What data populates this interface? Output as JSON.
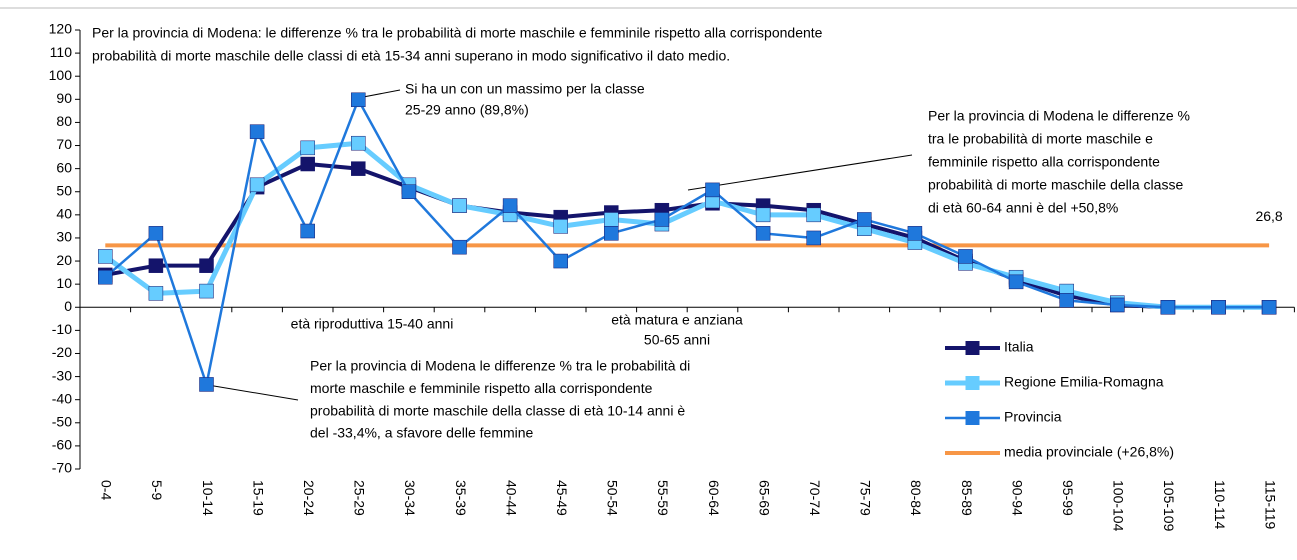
{
  "chart_data": {
    "type": "line",
    "categories": [
      "0-4",
      "5-9",
      "10-14",
      "15-19",
      "20-24",
      "25-29",
      "30-34",
      "35-39",
      "40-44",
      "45-49",
      "50-54",
      "55-59",
      "60-64",
      "65-69",
      "70-74",
      "75-79",
      "80-84",
      "85-89",
      "90-94",
      "95-99",
      "100-104",
      "105-109",
      "110-114",
      "115-119"
    ],
    "ylim": [
      -70,
      120
    ],
    "yticks": [
      -70,
      -60,
      -50,
      -40,
      -30,
      -20,
      -10,
      0,
      10,
      20,
      30,
      40,
      50,
      60,
      70,
      80,
      90,
      100,
      110,
      120
    ],
    "series": [
      {
        "name": "Italia",
        "color": "#14146b",
        "marker": true,
        "width": 4,
        "values": [
          14,
          18,
          18,
          52,
          62,
          60,
          52,
          44,
          41,
          39,
          41,
          42,
          45,
          44,
          42,
          36,
          30,
          20,
          12,
          5,
          1,
          0,
          0,
          0
        ]
      },
      {
        "name": "Regione Emilia-Romagna",
        "color": "#66ccff",
        "marker": true,
        "width": 5,
        "values": [
          22,
          6,
          7,
          53,
          69,
          71,
          53,
          44,
          40,
          35,
          38,
          36,
          46,
          40,
          40,
          34,
          28,
          19,
          13,
          7,
          2,
          0,
          0,
          0
        ]
      },
      {
        "name": "Provincia",
        "color": "#1f78dc",
        "marker": true,
        "width": 2.5,
        "values": [
          13,
          32,
          -33.4,
          76,
          33,
          89.8,
          50,
          26,
          44,
          20,
          32,
          38,
          50.8,
          32,
          30,
          38,
          32,
          22,
          11,
          3,
          1,
          0,
          0,
          0
        ]
      },
      {
        "name": "media provinciale (+26,8%)",
        "color": "#f79646",
        "marker": false,
        "width": 4,
        "values": [
          26.8,
          26.8,
          26.8,
          26.8,
          26.8,
          26.8,
          26.8,
          26.8,
          26.8,
          26.8,
          26.8,
          26.8,
          26.8,
          26.8,
          26.8,
          26.8,
          26.8,
          26.8,
          26.8,
          26.8,
          26.8,
          26.8,
          26.8,
          26.8
        ],
        "value_labels": [
          null,
          null,
          null,
          null,
          null,
          null,
          null,
          null,
          null,
          null,
          null,
          null,
          null,
          null,
          null,
          null,
          null,
          null,
          null,
          null,
          null,
          null,
          null,
          "26,8"
        ]
      }
    ],
    "annotations": [
      {
        "lines": [
          "Per la provincia di Modena: le differenze % tra le probabilità di morte maschile e femminile rispetto alla corrispondente",
          "probabilità di morte maschile delle classi di età 15-34 anni superano in modo significativo il dato medio."
        ]
      },
      {
        "lines": [
          "Si ha un con un massimo per la classe",
          "25-29 anno (89,8%)"
        ]
      },
      {
        "lines": [
          "Per la provincia di Modena le differenze %",
          "tra le probabilità di morte maschile e",
          "femminile rispetto alla corrispondente",
          "probabilità di morte maschile della classe",
          "di età 60-64 anni è del +50,8%"
        ]
      },
      {
        "lines": [
          "Per la provincia di Modena le differenze % tra le probabilità di",
          "morte maschile e femminile rispetto alla corrispondente",
          "probabilità di morte maschile della classe di età 10-14 anni è",
          "del -33,4%, a sfavore delle femmine"
        ]
      },
      {
        "lines": [
          "età riproduttiva 15-40 anni"
        ]
      },
      {
        "lines": [
          "età matura e anziana",
          "50-65 anni"
        ]
      }
    ]
  }
}
